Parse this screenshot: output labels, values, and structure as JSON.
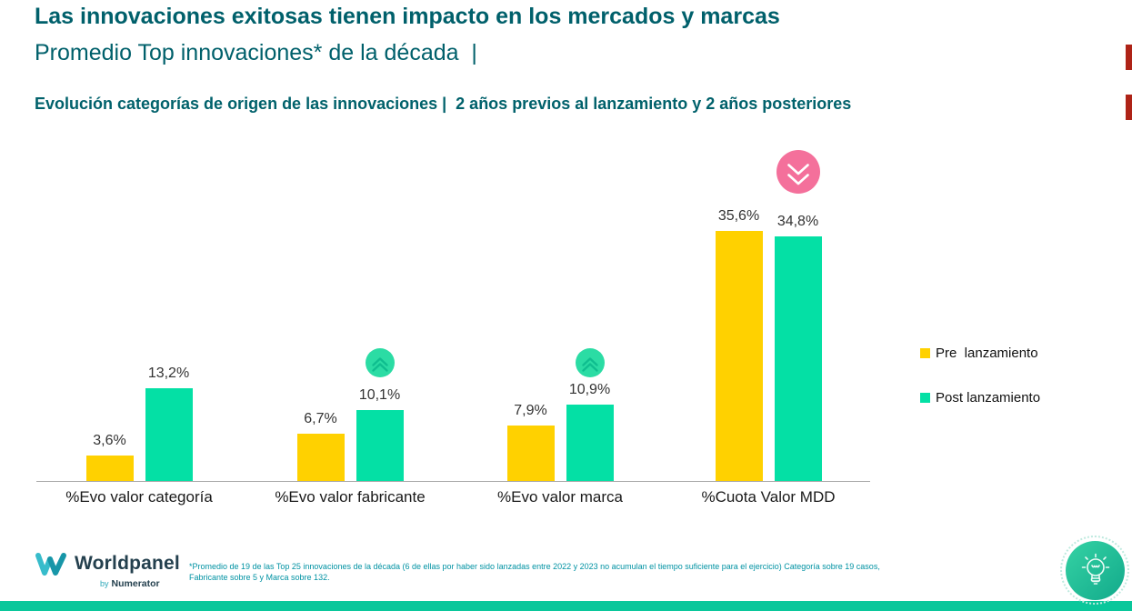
{
  "slide": {
    "title": "Las innovaciones exitosas tienen impacto en los mercados y marcas",
    "subtitle": "Promedio Top innovaciones* de la década  |",
    "section_heading": "Evolución categorías de origen de las innovaciones |  2 años previos al lanzamiento y 2 años posteriores"
  },
  "chart_data": {
    "type": "bar",
    "categories": [
      "%Evo valor categoría",
      "%Evo valor fabricante",
      "%Evo valor marca",
      "%Cuota Valor MDD"
    ],
    "series": [
      {
        "name": "Pre lanzamiento",
        "color": "#FFD100",
        "values": [
          3.6,
          6.7,
          7.9,
          35.6
        ],
        "labels": [
          "3,6%",
          "6,7%",
          "7,9%",
          "35,6%"
        ]
      },
      {
        "name": "Post lanzamiento",
        "color": "#04E0A5",
        "values": [
          13.2,
          10.1,
          10.9,
          34.8
        ],
        "labels": [
          "13,2%",
          "10,1%",
          "10,9%",
          "34,8%"
        ]
      }
    ],
    "annotations": [
      {
        "category_index": 1,
        "direction": "up",
        "meaning": "increase"
      },
      {
        "category_index": 2,
        "direction": "up",
        "meaning": "increase"
      },
      {
        "category_index": 3,
        "direction": "down",
        "meaning": "decrease"
      }
    ],
    "title": "",
    "xlabel": "",
    "ylabel": "",
    "ylim": [
      0,
      40
    ],
    "grid": false,
    "value_labels_shown": true,
    "legend_position": "right"
  },
  "legend": {
    "items": [
      {
        "label": "Pre  lanzamiento",
        "color": "#FFD100"
      },
      {
        "label": "Post lanzamiento",
        "color": "#04E0A5"
      }
    ]
  },
  "annotation_colors": {
    "up_circle": "#2BDCA4",
    "up_chevron": "#0FBE8F",
    "down_circle": "#F4709B",
    "down_chevron": "#FFFFFF"
  },
  "footer": {
    "logo": {
      "brand": "Worldpanel",
      "by": "by",
      "company": "Numerator"
    },
    "footnote": "*Promedio de 19 de las Top 25 innovaciones de la década (6 de ellas por haber sido lanzadas entre 2022 y 2023 no acumulan el tiempo suficiente para el ejercicio) Categoría sobre 19 casos, Fabricante sobre 5 y Marca sobre 132."
  },
  "colors": {
    "title_teal": "#00606B",
    "bar_yellow": "#FFD100",
    "bar_mint": "#04E0A5",
    "axis_gray": "#A9A9A9",
    "footnote_teal": "#0092A3",
    "bottom_bar": "#0AC79B",
    "edge_accent_red": "#AE2317"
  }
}
